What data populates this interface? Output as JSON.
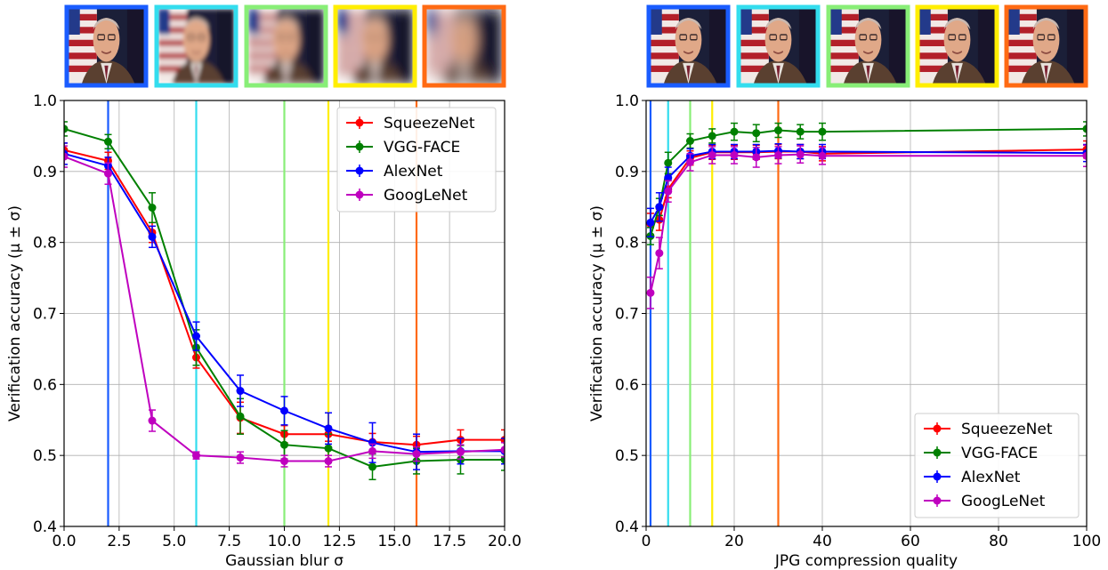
{
  "chart_data": [
    {
      "type": "line",
      "xlabel": "Gaussian blur σ",
      "ylabel": "Verification accuracy (μ ± σ)",
      "xlim": [
        0,
        20
      ],
      "ylim": [
        0.4,
        1.0
      ],
      "xticks": [
        "0.0",
        "2.5",
        "5.0",
        "7.5",
        "10.0",
        "12.5",
        "15.0",
        "17.5",
        "20.0"
      ],
      "yticks": [
        "0.4",
        "0.5",
        "0.6",
        "0.7",
        "0.8",
        "0.9",
        "1.0"
      ],
      "grid": true,
      "legend_position": "top-right",
      "x": [
        0,
        2,
        4,
        6,
        8,
        10,
        12,
        14,
        16,
        18,
        20
      ],
      "series": [
        {
          "name": "SqueezeNet",
          "color": "#ff0000",
          "values": [
            0.93,
            0.915,
            0.814,
            0.638,
            0.553,
            0.53,
            0.53,
            0.519,
            0.515,
            0.522,
            0.522
          ],
          "errors": [
            0.01,
            0.012,
            0.014,
            0.015,
            0.022,
            0.012,
            0.01,
            0.012,
            0.012,
            0.014,
            0.014
          ]
        },
        {
          "name": "VGG-FACE",
          "color": "#008000",
          "values": [
            0.96,
            0.942,
            0.849,
            0.652,
            0.555,
            0.515,
            0.51,
            0.484,
            0.492,
            0.494,
            0.494
          ],
          "errors": [
            0.01,
            0.01,
            0.021,
            0.025,
            0.025,
            0.02,
            0.02,
            0.018,
            0.018,
            0.02,
            0.015
          ]
        },
        {
          "name": "AlexNet",
          "color": "#0000ff",
          "values": [
            0.925,
            0.908,
            0.808,
            0.668,
            0.591,
            0.563,
            0.538,
            0.518,
            0.505,
            0.506,
            0.506
          ],
          "errors": [
            0.015,
            0.012,
            0.015,
            0.02,
            0.022,
            0.02,
            0.022,
            0.028,
            0.025,
            0.018,
            0.018
          ]
        },
        {
          "name": "GoogLeNet",
          "color": "#bf00bf",
          "values": [
            0.921,
            0.897,
            0.549,
            0.5,
            0.497,
            0.492,
            0.492,
            0.506,
            0.502,
            0.505,
            0.508
          ],
          "errors": [
            0.015,
            0.015,
            0.015,
            0.005,
            0.008,
            0.008,
            0.008,
            0.01,
            0.01,
            0.01,
            0.01
          ]
        }
      ],
      "markers": [
        {
          "x": 2,
          "color": "#1a5cff"
        },
        {
          "x": 6,
          "color": "#33ddee"
        },
        {
          "x": 10,
          "color": "#88ee77"
        },
        {
          "x": 12,
          "color": "#ffee00"
        },
        {
          "x": 16,
          "color": "#ff6a13"
        }
      ],
      "thumbnails": [
        {
          "border": "#1a5cff",
          "blur": 0
        },
        {
          "border": "#33ddee",
          "blur": 2
        },
        {
          "border": "#88ee77",
          "blur": 3.5
        },
        {
          "border": "#ffee00",
          "blur": 4.5
        },
        {
          "border": "#ff6a13",
          "blur": 6
        }
      ]
    },
    {
      "type": "line",
      "xlabel": "JPG compression quality",
      "ylabel": "Verification accuracy (μ ± σ)",
      "xlim": [
        0,
        100
      ],
      "ylim": [
        0.4,
        1.0
      ],
      "xticks": [
        "0",
        "20",
        "40",
        "60",
        "80",
        "100"
      ],
      "yticks": [
        "0.4",
        "0.5",
        "0.6",
        "0.7",
        "0.8",
        "0.9",
        "1.0"
      ],
      "grid": true,
      "legend_position": "bottom-right",
      "x": [
        1,
        3,
        5,
        10,
        15,
        20,
        25,
        30,
        35,
        40,
        100
      ],
      "series": [
        {
          "name": "SqueezeNet",
          "color": "#ff0000",
          "values": [
            0.826,
            0.832,
            0.875,
            0.919,
            0.927,
            0.927,
            0.927,
            0.928,
            0.928,
            0.925,
            0.931
          ],
          "errors": [
            0.015,
            0.015,
            0.012,
            0.01,
            0.01,
            0.01,
            0.01,
            0.01,
            0.01,
            0.01,
            0.012
          ]
        },
        {
          "name": "VGG-FACE",
          "color": "#008000",
          "values": [
            0.809,
            0.85,
            0.912,
            0.943,
            0.95,
            0.956,
            0.954,
            0.958,
            0.956,
            0.956,
            0.96
          ],
          "errors": [
            0.012,
            0.012,
            0.015,
            0.01,
            0.01,
            0.012,
            0.012,
            0.01,
            0.01,
            0.012,
            0.01
          ]
        },
        {
          "name": "AlexNet",
          "color": "#0000ff",
          "values": [
            0.828,
            0.85,
            0.891,
            0.922,
            0.928,
            0.928,
            0.928,
            0.929,
            0.928,
            0.928,
            0.926
          ],
          "errors": [
            0.02,
            0.02,
            0.015,
            0.01,
            0.01,
            0.01,
            0.01,
            0.01,
            0.01,
            0.01,
            0.012
          ]
        },
        {
          "name": "GoogLeNet",
          "color": "#bf00bf",
          "values": [
            0.729,
            0.785,
            0.872,
            0.913,
            0.923,
            0.923,
            0.92,
            0.923,
            0.924,
            0.922,
            0.922
          ],
          "errors": [
            0.022,
            0.022,
            0.015,
            0.012,
            0.012,
            0.012,
            0.014,
            0.012,
            0.012,
            0.012,
            0.015
          ]
        }
      ],
      "markers": [
        {
          "x": 1,
          "color": "#1a5cff"
        },
        {
          "x": 5,
          "color": "#33ddee"
        },
        {
          "x": 10,
          "color": "#88ee77"
        },
        {
          "x": 15,
          "color": "#ffee00"
        },
        {
          "x": 30,
          "color": "#ff6a13"
        }
      ],
      "thumbnails": [
        {
          "border": "#1a5cff",
          "blur": 0
        },
        {
          "border": "#33ddee",
          "blur": 0
        },
        {
          "border": "#88ee77",
          "blur": 0
        },
        {
          "border": "#ffee00",
          "blur": 0
        },
        {
          "border": "#ff6a13",
          "blur": 0
        }
      ]
    }
  ]
}
